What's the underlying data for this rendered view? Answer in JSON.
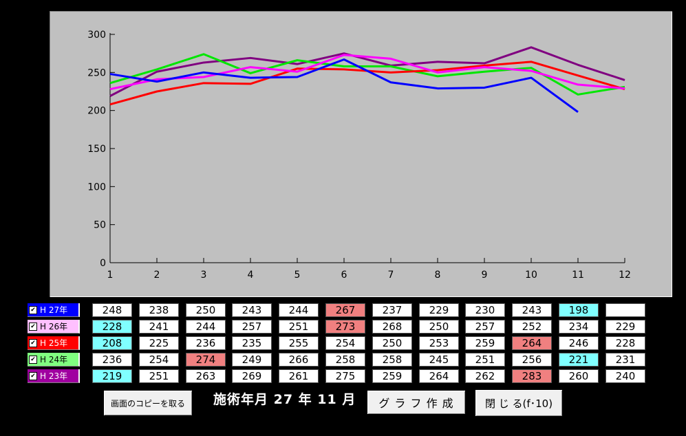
{
  "chart_data": {
    "type": "line",
    "x": [
      1,
      2,
      3,
      4,
      5,
      6,
      7,
      8,
      9,
      10,
      11,
      12
    ],
    "xlim": [
      1,
      12
    ],
    "ylim": [
      0,
      300
    ],
    "yticks": [
      0,
      50,
      100,
      150,
      200,
      250,
      300
    ],
    "grid": false,
    "series": [
      {
        "name": "H 27年",
        "color": "#0000ff",
        "values": [
          248,
          238,
          250,
          243,
          244,
          267,
          237,
          229,
          230,
          243,
          198,
          null
        ]
      },
      {
        "name": "H 26年",
        "color": "#ff00ff",
        "values": [
          228,
          241,
          244,
          257,
          251,
          273,
          268,
          250,
          257,
          252,
          234,
          229
        ]
      },
      {
        "name": "H 25年",
        "color": "#ff0000",
        "values": [
          208,
          225,
          236,
          235,
          255,
          254,
          250,
          253,
          259,
          264,
          246,
          228
        ]
      },
      {
        "name": "H 24年",
        "color": "#00e600",
        "values": [
          236,
          254,
          274,
          249,
          266,
          258,
          258,
          245,
          251,
          256,
          221,
          231
        ]
      },
      {
        "name": "H 23年",
        "color": "#800080",
        "values": [
          219,
          251,
          263,
          269,
          261,
          275,
          259,
          264,
          262,
          283,
          260,
          240
        ]
      }
    ]
  },
  "legend": [
    {
      "label": "H 27年",
      "bg": "#0000ff",
      "light": false
    },
    {
      "label": "H 26年",
      "bg": "#ffc0ff",
      "light": true
    },
    {
      "label": "H 25年",
      "bg": "#ff0000",
      "light": false
    },
    {
      "label": "H 24年",
      "bg": "#80ff80",
      "light": true
    },
    {
      "label": "H 23年",
      "bg": "#a000a0",
      "light": false
    }
  ],
  "table": [
    [
      "248",
      "238",
      "250",
      "243",
      "244",
      "267",
      "237",
      "229",
      "230",
      "243",
      "198",
      ""
    ],
    [
      "228",
      "241",
      "244",
      "257",
      "251",
      "273",
      "268",
      "250",
      "257",
      "252",
      "234",
      "229"
    ],
    [
      "208",
      "225",
      "236",
      "235",
      "255",
      "254",
      "250",
      "253",
      "259",
      "264",
      "246",
      "228"
    ],
    [
      "236",
      "254",
      "274",
      "249",
      "266",
      "258",
      "258",
      "245",
      "251",
      "256",
      "221",
      "231"
    ],
    [
      "219",
      "251",
      "263",
      "269",
      "261",
      "275",
      "259",
      "264",
      "262",
      "283",
      "260",
      "240"
    ]
  ],
  "cell_colors": {
    "min": "#80ffff",
    "max": "#f08080",
    "normal": "#ffffff"
  },
  "cell_highlights": [
    [
      "",
      "",
      "",
      "",
      "",
      "max",
      "",
      "",
      "",
      "",
      "min",
      ""
    ],
    [
      "min",
      "",
      "",
      "",
      "",
      "max",
      "",
      "",
      "",
      "",
      "",
      ""
    ],
    [
      "min",
      "",
      "",
      "",
      "",
      "",
      "",
      "",
      "",
      "max",
      "",
      ""
    ],
    [
      "",
      "",
      "max",
      "",
      "",
      "",
      "",
      "",
      "",
      "",
      "min",
      ""
    ],
    [
      "min",
      "",
      "",
      "",
      "",
      "",
      "",
      "",
      "",
      "max",
      "",
      ""
    ]
  ],
  "checkbox_mark": "✔",
  "buttons": {
    "copy_screen": "画面のコピーを取る",
    "make_graph": "グ ラ フ 作 成",
    "close": "閉 じ る(f･10)"
  },
  "date_label": "施術年月 27 年 11 月"
}
